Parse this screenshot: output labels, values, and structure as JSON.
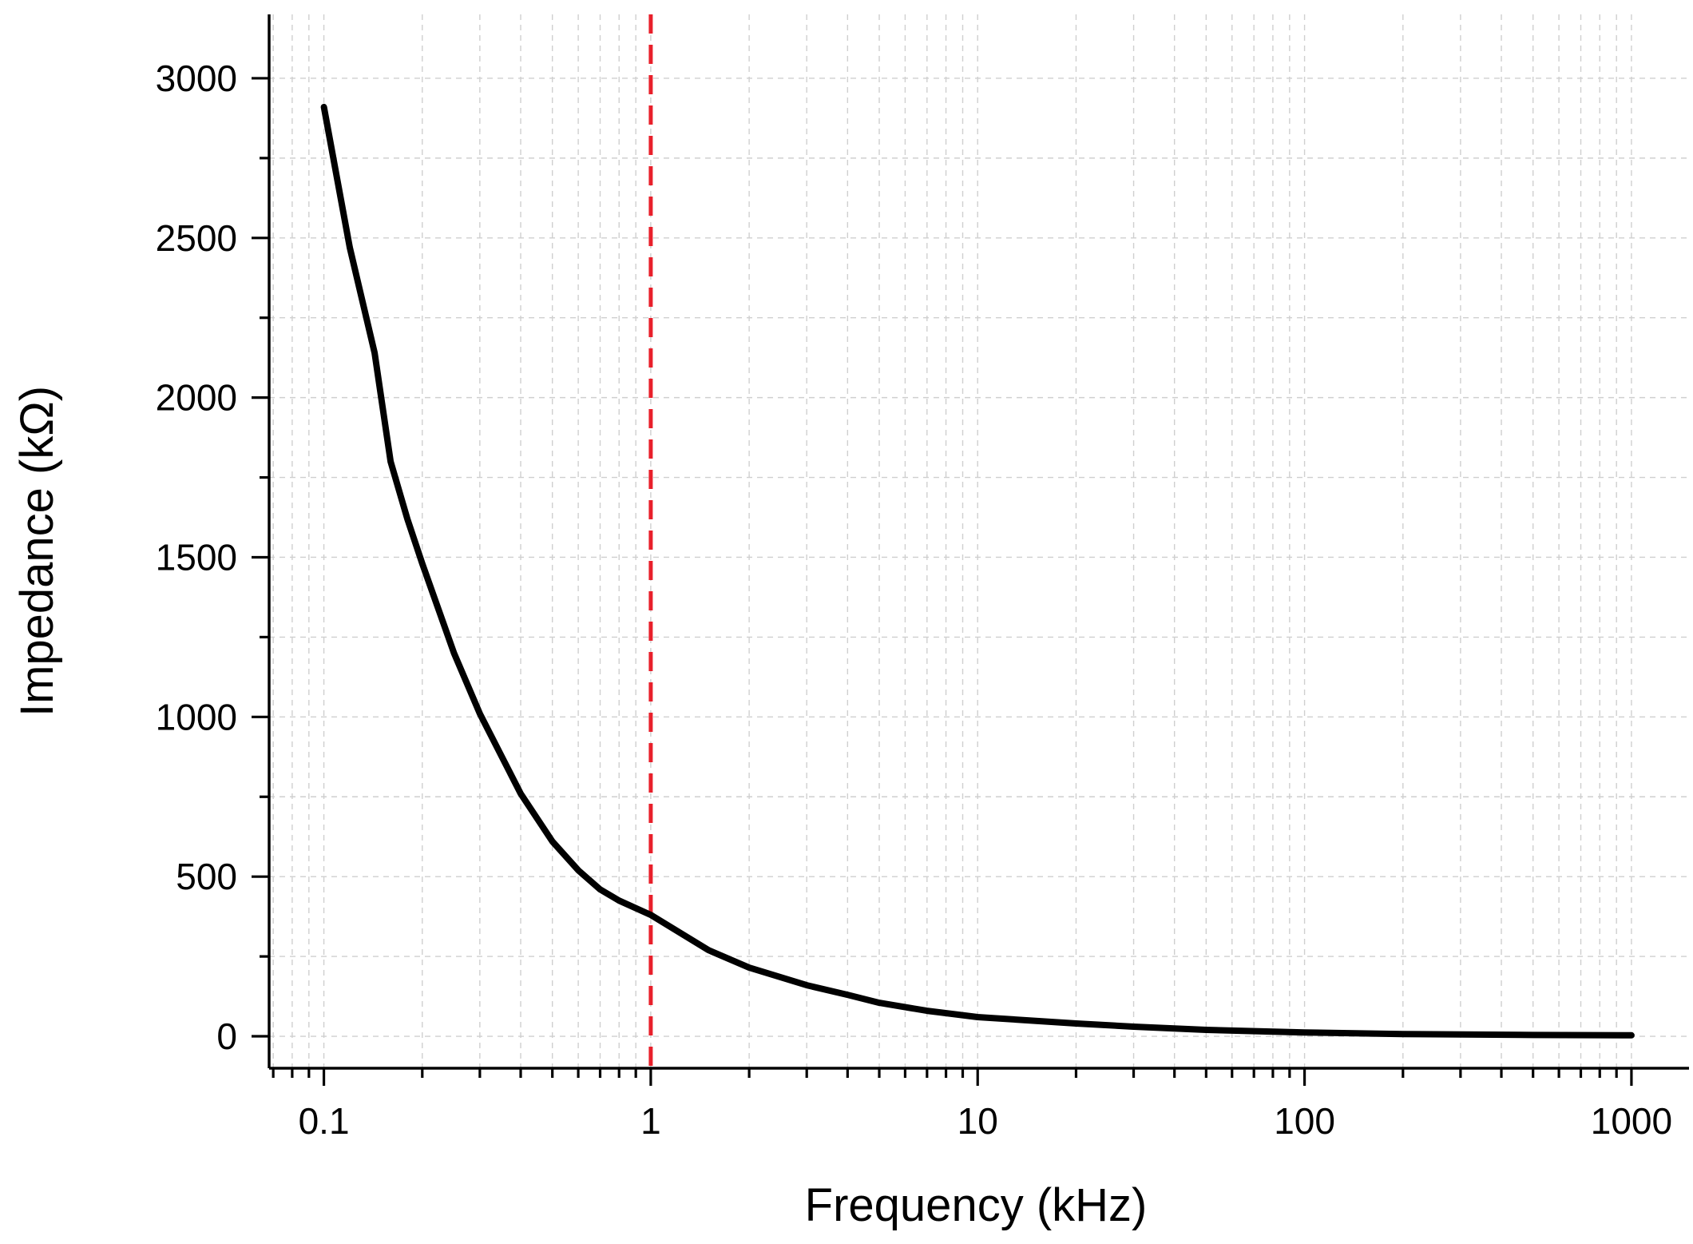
{
  "chart_data": {
    "type": "line",
    "title": "",
    "xlabel": "Frequency (kHz)",
    "ylabel": "Impedance (kΩ)",
    "xscale": "log",
    "xlim": [
      0.068,
      1500
    ],
    "ylim": [
      -100,
      3200
    ],
    "x_ticks": [
      0.1,
      1,
      10,
      100,
      1000
    ],
    "x_tick_labels": [
      "0.1",
      "1",
      "10",
      "100",
      "1000"
    ],
    "y_ticks": [
      0,
      500,
      1000,
      1500,
      2000,
      2500,
      3000
    ],
    "y_tick_labels": [
      "0",
      "500",
      "1000",
      "1500",
      "2000",
      "2500",
      "3000"
    ],
    "grid": true,
    "reference_line": {
      "axis": "x",
      "value": 1,
      "color": "#e8202b",
      "style": "dashed"
    },
    "series": [
      {
        "name": "Impedance",
        "color": "#000000",
        "x": [
          0.1,
          0.12,
          0.143,
          0.16,
          0.18,
          0.2,
          0.25,
          0.3,
          0.4,
          0.5,
          0.6,
          0.7,
          0.8,
          1,
          1.5,
          2,
          3,
          4,
          5,
          7,
          10,
          20,
          30,
          50,
          100,
          200,
          500,
          1000
        ],
        "y": [
          2910,
          2470,
          2140,
          1800,
          1620,
          1480,
          1200,
          1010,
          760,
          610,
          520,
          460,
          425,
          380,
          270,
          215,
          160,
          130,
          105,
          80,
          60,
          40,
          30,
          20,
          12,
          7,
          4,
          3
        ]
      }
    ]
  }
}
